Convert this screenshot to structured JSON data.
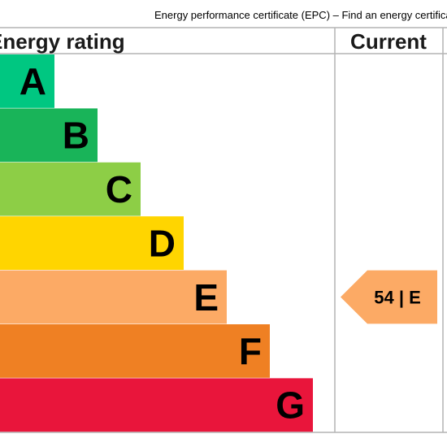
{
  "caption": "Energy performance certificate (EPC) – Find an energy certificate",
  "headings": {
    "rating": "Energy rating",
    "current": "Current"
  },
  "chart_data": {
    "type": "bar",
    "categories": [
      "A",
      "B",
      "C",
      "D",
      "E",
      "F",
      "G"
    ],
    "band_colors": [
      "#00c781",
      "#19b459",
      "#8dce46",
      "#ffd500",
      "#fcaa65",
      "#ef8023",
      "#e9153b"
    ],
    "current": {
      "score": 54,
      "band": "E",
      "label": "54 | E"
    }
  }
}
